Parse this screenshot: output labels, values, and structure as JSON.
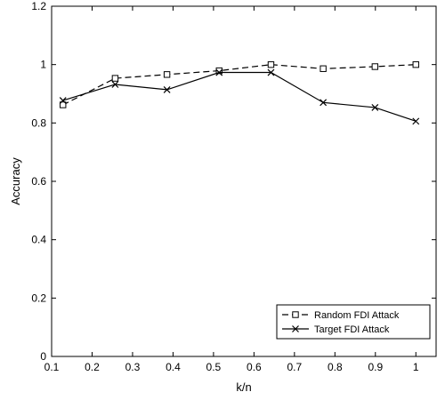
{
  "chart_data": {
    "type": "line",
    "title": "",
    "xlabel": "k/n",
    "ylabel": "Accuracy",
    "xlim": [
      0.1,
      1.05
    ],
    "ylim": [
      0,
      1.2
    ],
    "xticks": [
      0.1,
      0.2,
      0.3,
      0.4,
      0.5,
      0.6,
      0.7,
      0.8,
      0.9,
      1
    ],
    "xtick_labels": [
      "0.1",
      "0.2",
      "0.3",
      "0.4",
      "0.5",
      "0.6",
      "0.7",
      "0.8",
      "0.9",
      "1"
    ],
    "yticks": [
      0,
      0.2,
      0.4,
      0.6,
      0.8,
      1,
      1.2
    ],
    "ytick_labels": [
      "0",
      "0.2",
      "0.4",
      "0.6",
      "0.8",
      "1",
      "1.2"
    ],
    "grid": false,
    "legend_position": "bottom-right",
    "series": [
      {
        "name": "Random FDI Attack",
        "marker": "square",
        "line_style": "dashed",
        "color": "#000000",
        "x": [
          0.128,
          0.257,
          0.385,
          0.514,
          0.642,
          0.771,
          0.899,
          1.0
        ],
        "y": [
          0.862,
          0.953,
          0.966,
          0.979,
          1.0,
          0.986,
          0.993,
          1.0
        ]
      },
      {
        "name": "Target FDI Attack",
        "marker": "x",
        "line_style": "solid",
        "color": "#000000",
        "x": [
          0.128,
          0.257,
          0.385,
          0.514,
          0.642,
          0.771,
          0.899,
          1.0
        ],
        "y": [
          0.877,
          0.932,
          0.914,
          0.973,
          0.973,
          0.87,
          0.853,
          0.806
        ]
      }
    ]
  }
}
